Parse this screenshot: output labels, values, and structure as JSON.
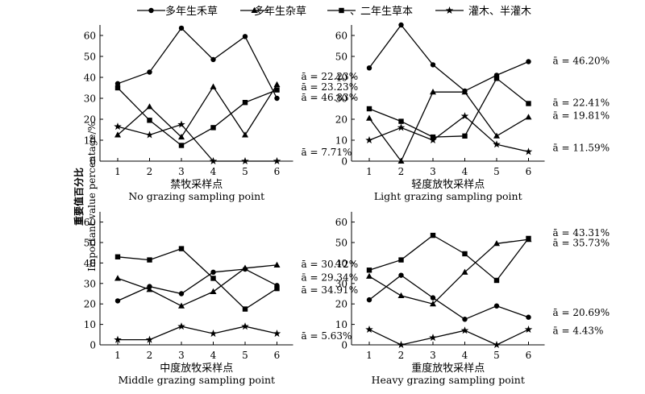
{
  "ylabel_cn": "重要值百分比",
  "ylabel_en": "Important value percentage/%",
  "legend": [
    {
      "label": "多年生禾草",
      "marker": "circle"
    },
    {
      "label": "多年生杂草",
      "marker": "triangle"
    },
    {
      "label": "一、二年生草本",
      "marker": "square"
    },
    {
      "label": "灌木、半灌木",
      "marker": "star"
    }
  ],
  "chart_data": [
    {
      "type": "line",
      "title_cn": "禁牧采样点",
      "title_en": "No grazing sampling point",
      "x": [
        1,
        2,
        3,
        4,
        5,
        6
      ],
      "ylim": [
        0,
        65
      ],
      "yticks": [
        0,
        10,
        20,
        30,
        40,
        50,
        60
      ],
      "series": [
        {
          "name": "多年生禾草",
          "values": [
            37,
            42.5,
            63.5,
            48.5,
            59.5,
            30
          ]
        },
        {
          "name": "多年生杂草",
          "values": [
            12.5,
            26,
            11.5,
            35.5,
            12.5,
            36.5
          ]
        },
        {
          "name": "一、二年生草本",
          "values": [
            35,
            19.5,
            7.5,
            16,
            28,
            34
          ]
        },
        {
          "name": "灌木、半灌木",
          "values": [
            16.5,
            12.5,
            17.5,
            0,
            0,
            0
          ]
        }
      ],
      "annotations": [
        {
          "text": "ā = 22.23%",
          "y": 40.5
        },
        {
          "text": "ā = 23.23%",
          "y": 35.5
        },
        {
          "text": "ā = 46.83%",
          "y": 30.5
        },
        {
          "text": "ā = 7.71%",
          "y": 4.5
        }
      ]
    },
    {
      "type": "line",
      "title_cn": "轻度放牧采样点",
      "title_en": "Light grazing sampling point",
      "x": [
        1,
        2,
        3,
        4,
        5,
        6
      ],
      "ylim": [
        0,
        65
      ],
      "yticks": [
        0,
        10,
        20,
        30,
        40,
        50,
        60
      ],
      "series": [
        {
          "name": "多年生禾草",
          "values": [
            44.5,
            65,
            46,
            33.5,
            41,
            47.5
          ]
        },
        {
          "name": "多年生杂草",
          "values": [
            20.5,
            0,
            33,
            33,
            12,
            21
          ]
        },
        {
          "name": "一、二年生草本",
          "values": [
            25,
            19,
            11.5,
            12,
            39.5,
            27.5
          ]
        },
        {
          "name": "灌木、半灌木",
          "values": [
            10,
            16,
            10,
            21.5,
            8,
            4.5
          ]
        }
      ],
      "annotations": [
        {
          "text": "ā = 46.20%",
          "y": 48
        },
        {
          "text": "ā = 22.41%",
          "y": 28
        },
        {
          "text": "ā = 19.81%",
          "y": 22
        },
        {
          "text": "ā = 11.59%",
          "y": 6.5
        }
      ]
    },
    {
      "type": "line",
      "title_cn": "中度放牧采样点",
      "title_en": "Middle grazing sampling point",
      "x": [
        1,
        2,
        3,
        4,
        5,
        6
      ],
      "ylim": [
        0,
        65
      ],
      "yticks": [
        0,
        10,
        20,
        30,
        40,
        50,
        60
      ],
      "series": [
        {
          "name": "多年生禾草",
          "values": [
            21.5,
            28.5,
            25,
            35.5,
            37,
            29
          ]
        },
        {
          "name": "多年生杂草",
          "values": [
            32.5,
            27,
            19,
            26,
            37.5,
            39
          ]
        },
        {
          "name": "一、二年生草本",
          "values": [
            43,
            41.5,
            47,
            32.5,
            17.5,
            27.5
          ]
        },
        {
          "name": "灌木、半灌木",
          "values": [
            2.5,
            2.5,
            9,
            5.5,
            9,
            5.5
          ]
        }
      ],
      "annotations": [
        {
          "text": "ā = 30.12%",
          "y": 39.5
        },
        {
          "text": "ā = 29.34%",
          "y": 33
        },
        {
          "text": "ā = 34.91%",
          "y": 27
        },
        {
          "text": "ā = 5.63%",
          "y": 4.5
        }
      ]
    },
    {
      "type": "line",
      "title_cn": "重度放牧采样点",
      "title_en": "Heavy grazing sampling point",
      "x": [
        1,
        2,
        3,
        4,
        5,
        6
      ],
      "ylim": [
        0,
        65
      ],
      "yticks": [
        0,
        10,
        20,
        30,
        40,
        50,
        60
      ],
      "series": [
        {
          "name": "多年生禾草",
          "values": [
            22,
            34,
            23,
            12.5,
            19,
            13.5
          ]
        },
        {
          "name": "多年生杂草",
          "values": [
            33.5,
            24,
            20,
            35.5,
            49.5,
            51.5
          ]
        },
        {
          "name": "一、二年生草本",
          "values": [
            36.5,
            41.5,
            53.5,
            44.5,
            31.5,
            52
          ]
        },
        {
          "name": "灌木、半灌木",
          "values": [
            7.5,
            0,
            3.5,
            7,
            0,
            7.5
          ]
        }
      ],
      "annotations": [
        {
          "text": "ā = 43.31%",
          "y": 55
        },
        {
          "text": "ā = 35.73%",
          "y": 50
        },
        {
          "text": "ā = 20.69%",
          "y": 16
        },
        {
          "text": "ā = 4.43%",
          "y": 7
        }
      ]
    }
  ]
}
